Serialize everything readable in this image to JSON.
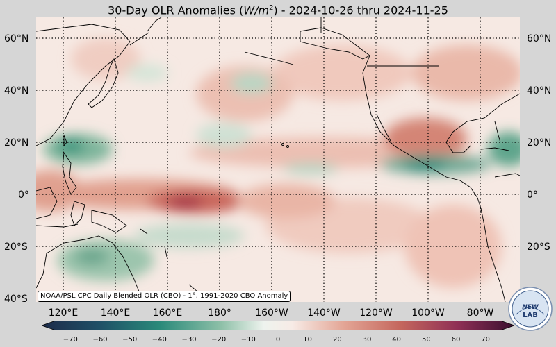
{
  "title_prefix": "30-Day OLR Anomalies (",
  "title_unit_main": "W/m",
  "title_unit_sup": "2",
  "title_suffix": ") - 2024-10-26 thru 2024-11-25",
  "latitudes": [
    "60°N",
    "40°N",
    "20°N",
    "0°",
    "20°S",
    "40°S"
  ],
  "longitudes": [
    "120°E",
    "140°E",
    "160°E",
    "180°",
    "160°W",
    "140°W",
    "120°W",
    "100°W",
    "80°W"
  ],
  "credit": "NOAA/PSL CPC Daily Blended OLR (CBO) - 1°, 1991-2020 CBO Anomaly",
  "colorbar": {
    "ticks": [
      "−70",
      "−60",
      "−50",
      "−40",
      "−30",
      "−20",
      "−10",
      "0",
      "10",
      "20",
      "30",
      "40",
      "50",
      "60",
      "70"
    ],
    "min": -75,
    "max": 75
  },
  "logo": {
    "text_top": "NEW",
    "text_bottom": "LAB"
  },
  "colors": {
    "negative_deep": "#1d2b4a",
    "negative_mid": "#2a8a7a",
    "neutral": "#f7f0ee",
    "positive_mid": "#d47a68",
    "positive_deep": "#5a1540"
  }
}
